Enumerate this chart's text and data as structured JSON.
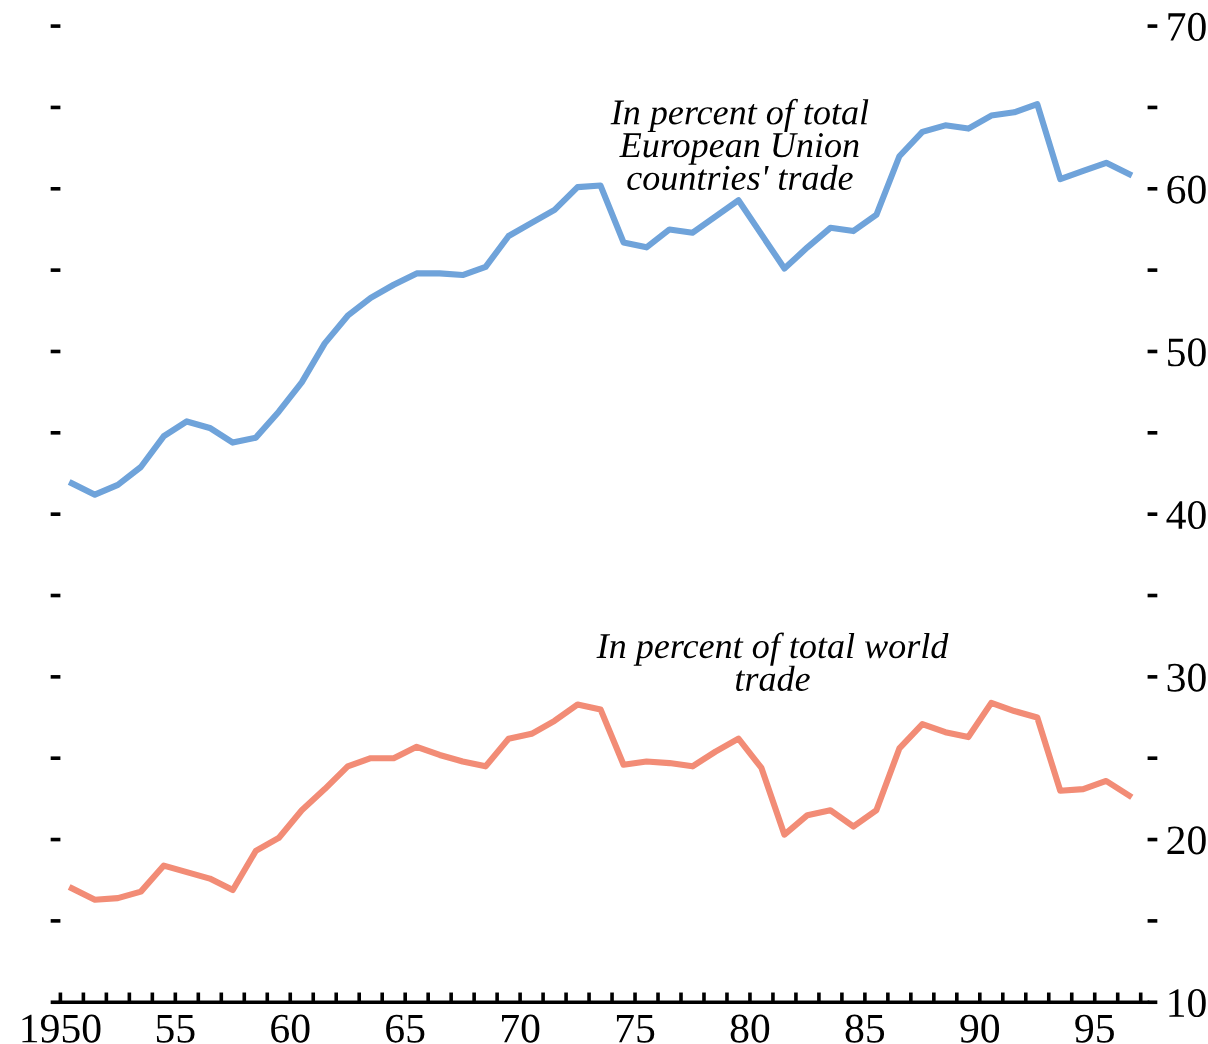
{
  "chart_data": {
    "type": "line",
    "xlim": [
      1950,
      1997.3
    ],
    "ylim": [
      10,
      70
    ],
    "xticks": [
      {
        "value": 1950,
        "label": "1950"
      },
      {
        "value": 1951,
        "label": null
      },
      {
        "value": 1952,
        "label": null
      },
      {
        "value": 1953,
        "label": null
      },
      {
        "value": 1954,
        "label": null
      },
      {
        "value": 1955,
        "label": "55"
      },
      {
        "value": 1956,
        "label": null
      },
      {
        "value": 1957,
        "label": null
      },
      {
        "value": 1958,
        "label": null
      },
      {
        "value": 1959,
        "label": null
      },
      {
        "value": 1960,
        "label": "60"
      },
      {
        "value": 1961,
        "label": null
      },
      {
        "value": 1962,
        "label": null
      },
      {
        "value": 1963,
        "label": null
      },
      {
        "value": 1964,
        "label": null
      },
      {
        "value": 1965,
        "label": "65"
      },
      {
        "value": 1966,
        "label": null
      },
      {
        "value": 1967,
        "label": null
      },
      {
        "value": 1968,
        "label": null
      },
      {
        "value": 1969,
        "label": null
      },
      {
        "value": 1970,
        "label": "70"
      },
      {
        "value": 1971,
        "label": null
      },
      {
        "value": 1972,
        "label": null
      },
      {
        "value": 1973,
        "label": null
      },
      {
        "value": 1974,
        "label": null
      },
      {
        "value": 1975,
        "label": "75"
      },
      {
        "value": 1976,
        "label": null
      },
      {
        "value": 1977,
        "label": null
      },
      {
        "value": 1978,
        "label": null
      },
      {
        "value": 1979,
        "label": null
      },
      {
        "value": 1980,
        "label": "80"
      },
      {
        "value": 1981,
        "label": null
      },
      {
        "value": 1982,
        "label": null
      },
      {
        "value": 1983,
        "label": null
      },
      {
        "value": 1984,
        "label": null
      },
      {
        "value": 1985,
        "label": "85"
      },
      {
        "value": 1986,
        "label": null
      },
      {
        "value": 1987,
        "label": null
      },
      {
        "value": 1988,
        "label": null
      },
      {
        "value": 1989,
        "label": null
      },
      {
        "value": 1990,
        "label": "90"
      },
      {
        "value": 1991,
        "label": null
      },
      {
        "value": 1992,
        "label": null
      },
      {
        "value": 1993,
        "label": null
      },
      {
        "value": 1994,
        "label": null
      },
      {
        "value": 1995,
        "label": "95"
      },
      {
        "value": 1996,
        "label": null
      },
      {
        "value": 1997,
        "label": null
      }
    ],
    "yticks": [
      10,
      {
        "value": 15,
        "label": null
      },
      20,
      {
        "value": 25,
        "label": null
      },
      30,
      {
        "value": 35,
        "label": null
      },
      40,
      {
        "value": 45,
        "label": null
      },
      50,
      {
        "value": 55,
        "label": null
      },
      60,
      {
        "value": 65,
        "label": null
      },
      70
    ],
    "x": [
      1950.5,
      1951.5,
      1952.5,
      1953.5,
      1954.5,
      1955.5,
      1956.5,
      1957.5,
      1958.5,
      1959.5,
      1960.5,
      1961.5,
      1962.5,
      1963.5,
      1964.5,
      1965.5,
      1966.5,
      1967.5,
      1968.5,
      1969.5,
      1970.5,
      1971.5,
      1972.5,
      1973.5,
      1974.5,
      1975.5,
      1976.5,
      1977.5,
      1978.5,
      1979.5,
      1980.5,
      1981.5,
      1982.5,
      1983.5,
      1984.5,
      1985.5,
      1986.5,
      1987.5,
      1988.5,
      1989.5,
      1990.5,
      1991.5,
      1992.5,
      1993.5,
      1994.5,
      1995.5,
      1996.5
    ],
    "series": [
      {
        "name": "In percent of total European Union countries' trade",
        "color": "#6fa3da",
        "values": [
          41.9,
          41.2,
          41.8,
          42.9,
          44.8,
          45.7,
          45.3,
          44.4,
          44.7,
          46.3,
          48.1,
          50.5,
          52.2,
          53.3,
          54.1,
          54.8,
          54.8,
          54.7,
          55.2,
          57.1,
          57.9,
          58.7,
          60.1,
          60.2,
          56.7,
          56.4,
          57.5,
          57.3,
          58.3,
          59.3,
          57.2,
          55.1,
          56.4,
          57.6,
          57.4,
          58.4,
          62.0,
          63.5,
          63.9,
          63.7,
          64.5,
          64.7,
          65.2,
          60.6,
          61.1,
          61.6,
          60.9
        ]
      },
      {
        "name": "In percent of total world trade",
        "color": "#f28c76",
        "values": [
          17.0,
          16.3,
          16.4,
          16.8,
          18.4,
          18.0,
          17.6,
          16.9,
          19.3,
          20.1,
          21.8,
          23.1,
          24.5,
          25.0,
          25.0,
          25.7,
          25.2,
          24.8,
          24.5,
          26.2,
          26.5,
          27.3,
          28.3,
          28.0,
          24.6,
          24.8,
          24.7,
          24.5,
          25.4,
          26.2,
          24.4,
          20.3,
          21.5,
          21.8,
          20.8,
          21.8,
          25.6,
          27.1,
          26.6,
          26.3,
          28.4,
          27.9,
          27.5,
          23.0,
          23.1,
          23.6,
          22.7
        ]
      }
    ],
    "grid": false,
    "legend": false,
    "line_style": "solid",
    "marker": "none"
  }
}
